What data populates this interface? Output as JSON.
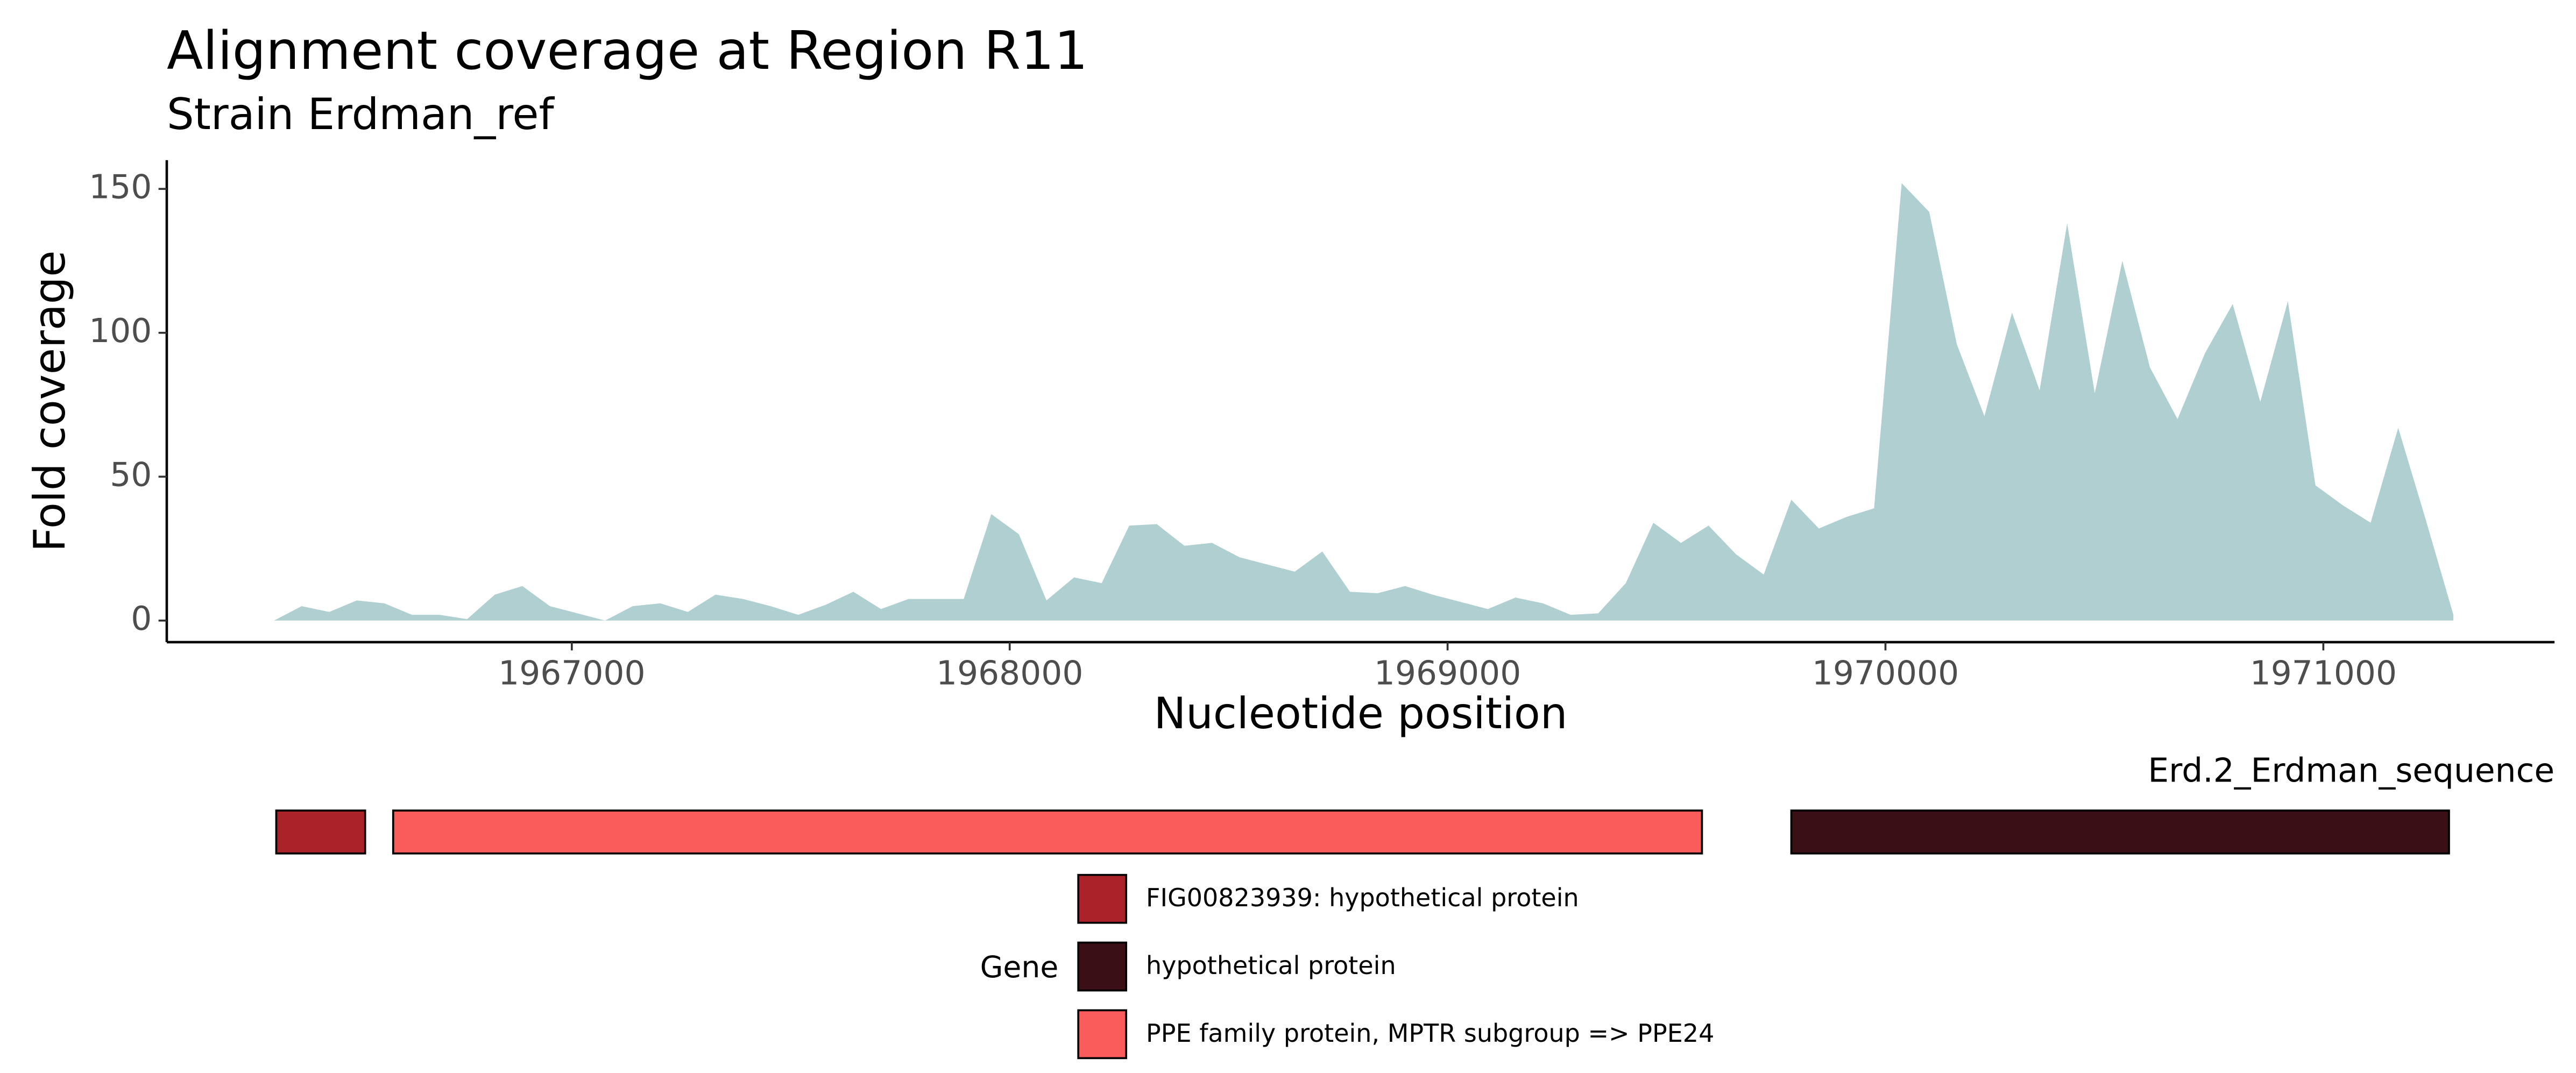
{
  "chart_data": [
    {
      "type": "area",
      "title": "Alignment coverage at Region R11",
      "subtitle": "Strain Erdman_ref",
      "x_label": "Nucleotide position",
      "y_label": "Fold coverage",
      "x": [
        1966320,
        1966383,
        1966446,
        1966509,
        1966572,
        1966635,
        1966698,
        1966761,
        1966824,
        1966887,
        1966950,
        1967013,
        1967076,
        1967139,
        1967202,
        1967265,
        1967328,
        1967391,
        1967454,
        1967517,
        1967580,
        1967643,
        1967706,
        1967769,
        1967832,
        1967895,
        1967958,
        1968021,
        1968084,
        1968147,
        1968210,
        1968273,
        1968336,
        1968399,
        1968462,
        1968525,
        1968588,
        1968651,
        1968714,
        1968777,
        1968840,
        1968903,
        1968966,
        1969029,
        1969092,
        1969155,
        1969218,
        1969281,
        1969344,
        1969407,
        1969470,
        1969533,
        1969596,
        1969659,
        1969722,
        1969785,
        1969848,
        1969911,
        1969974,
        1970037,
        1970100,
        1970163,
        1970226,
        1970289,
        1970352,
        1970415,
        1970478,
        1970541,
        1970604,
        1970667,
        1970730,
        1970793,
        1970856,
        1970919,
        1970982,
        1971045,
        1971108,
        1971171,
        1971234,
        1971297
      ],
      "series": [
        {
          "name": "coverage",
          "color": "#b0cfd1",
          "values": [
            0,
            5,
            3,
            7,
            6,
            2,
            2,
            0.5,
            9,
            12,
            5,
            2.5,
            0,
            5,
            6,
            3,
            9,
            7.5,
            5,
            2,
            5.5,
            10,
            4,
            7.5,
            7.5,
            7.5,
            37,
            30,
            7,
            15,
            13,
            33,
            33.5,
            26,
            27,
            22,
            19.5,
            17,
            24,
            10,
            9.5,
            12,
            9,
            6.5,
            4,
            8,
            6,
            2,
            2.5,
            13,
            34,
            27,
            33,
            23,
            16,
            42,
            32,
            36,
            39,
            152,
            142,
            96,
            71,
            107,
            80,
            138,
            79,
            125,
            88,
            70,
            93,
            110,
            76,
            111,
            47,
            40,
            34,
            67,
            35,
            2
          ]
        }
      ],
      "xlim": [
        1966075,
        1971528
      ],
      "ylim": [
        -7.5,
        160
      ],
      "xticks": [
        1967000,
        1968000,
        1969000,
        1970000,
        1971000
      ],
      "yticks": [
        0,
        50,
        100,
        150
      ]
    },
    {
      "type": "gene",
      "track_label": "Erd.2_Erdman_sequence",
      "legend_title": "Gene",
      "xlim": [
        1966075,
        1971528
      ],
      "series": [
        {
          "name": "FIG00823939: hypothetical protein",
          "color": "#ab2328",
          "start": 1966325,
          "end": 1966528
        },
        {
          "name": "hypothetical protein",
          "color": "#3a1016",
          "start": 1969785,
          "end": 1971287
        },
        {
          "name": "PPE family protein, MPTR subgroup => PPE24",
          "color": "#fa5c5c",
          "start": 1966592,
          "end": 1969581
        }
      ]
    }
  ]
}
